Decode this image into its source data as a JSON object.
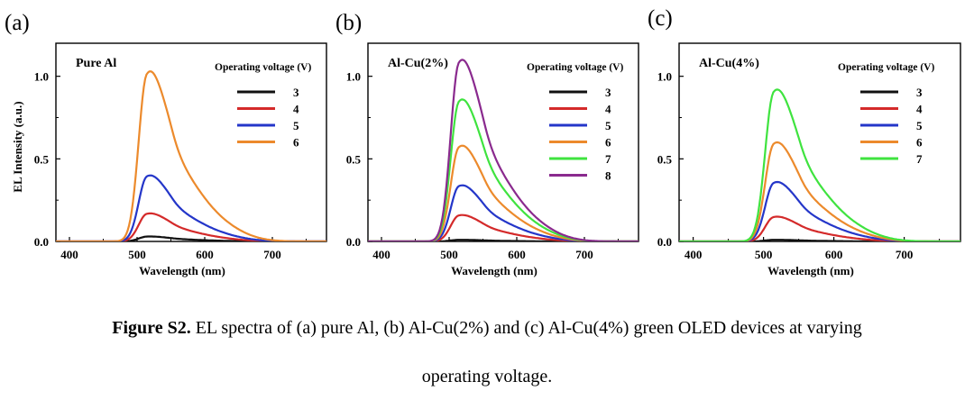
{
  "caption": {
    "bold": "Figure S2.",
    "line1": " EL spectra of (a) pure Al, (b) Al-Cu(2%) and (c) Al-Cu(4%) green OLED devices at varying",
    "line2": "operating voltage."
  },
  "colors": {
    "3": "#111111",
    "4": "#d42a2a",
    "5": "#2436c9",
    "6": "#ec8a2c",
    "7": "#3fe33f",
    "8": "#8a2a8e"
  },
  "chart_data": [
    {
      "type": "line",
      "panel": "(a)",
      "title": "Pure Al",
      "xlabel": "Wavelength (nm)",
      "ylabel": "EL Intensity (a.u.)",
      "xlim": [
        380,
        780
      ],
      "ylim": [
        0,
        1.2
      ],
      "xticks": [
        400,
        500,
        600,
        700
      ],
      "yticks": [
        "0.0",
        "0.5",
        "1.0"
      ],
      "legend_title": "Operating voltage (V)",
      "legend_position": "top-right",
      "series": [
        {
          "name": "3",
          "peak": 0.03
        },
        {
          "name": "4",
          "peak": 0.17
        },
        {
          "name": "5",
          "peak": 0.4
        },
        {
          "name": "6",
          "peak": 1.03
        }
      ]
    },
    {
      "type": "line",
      "panel": "(b)",
      "title": "Al-Cu(2%)",
      "xlabel": "Wavelength (nm)",
      "ylabel": "",
      "xlim": [
        380,
        780
      ],
      "ylim": [
        0,
        1.2
      ],
      "xticks": [
        400,
        500,
        600,
        700
      ],
      "yticks": [
        "0.0",
        "0.5",
        "1.0"
      ],
      "legend_title": "Operating voltage (V)",
      "legend_position": "top-right",
      "series": [
        {
          "name": "3",
          "peak": 0.01
        },
        {
          "name": "4",
          "peak": 0.16
        },
        {
          "name": "5",
          "peak": 0.34
        },
        {
          "name": "6",
          "peak": 0.58
        },
        {
          "name": "7",
          "peak": 0.86
        },
        {
          "name": "8",
          "peak": 1.1
        }
      ]
    },
    {
      "type": "line",
      "panel": "(c)",
      "title": "Al-Cu(4%)",
      "xlabel": "Wavelength (nm)",
      "ylabel": "",
      "xlim": [
        380,
        780
      ],
      "ylim": [
        0,
        1.2
      ],
      "xticks": [
        400,
        500,
        600,
        700
      ],
      "yticks": [
        "0.0",
        "0.5",
        "1.0"
      ],
      "legend_title": "Operating voltage (V)",
      "legend_position": "top-right",
      "series": [
        {
          "name": "3",
          "peak": 0.01
        },
        {
          "name": "4",
          "peak": 0.15
        },
        {
          "name": "5",
          "peak": 0.36
        },
        {
          "name": "6",
          "peak": 0.6
        },
        {
          "name": "7",
          "peak": 0.92
        }
      ]
    }
  ]
}
